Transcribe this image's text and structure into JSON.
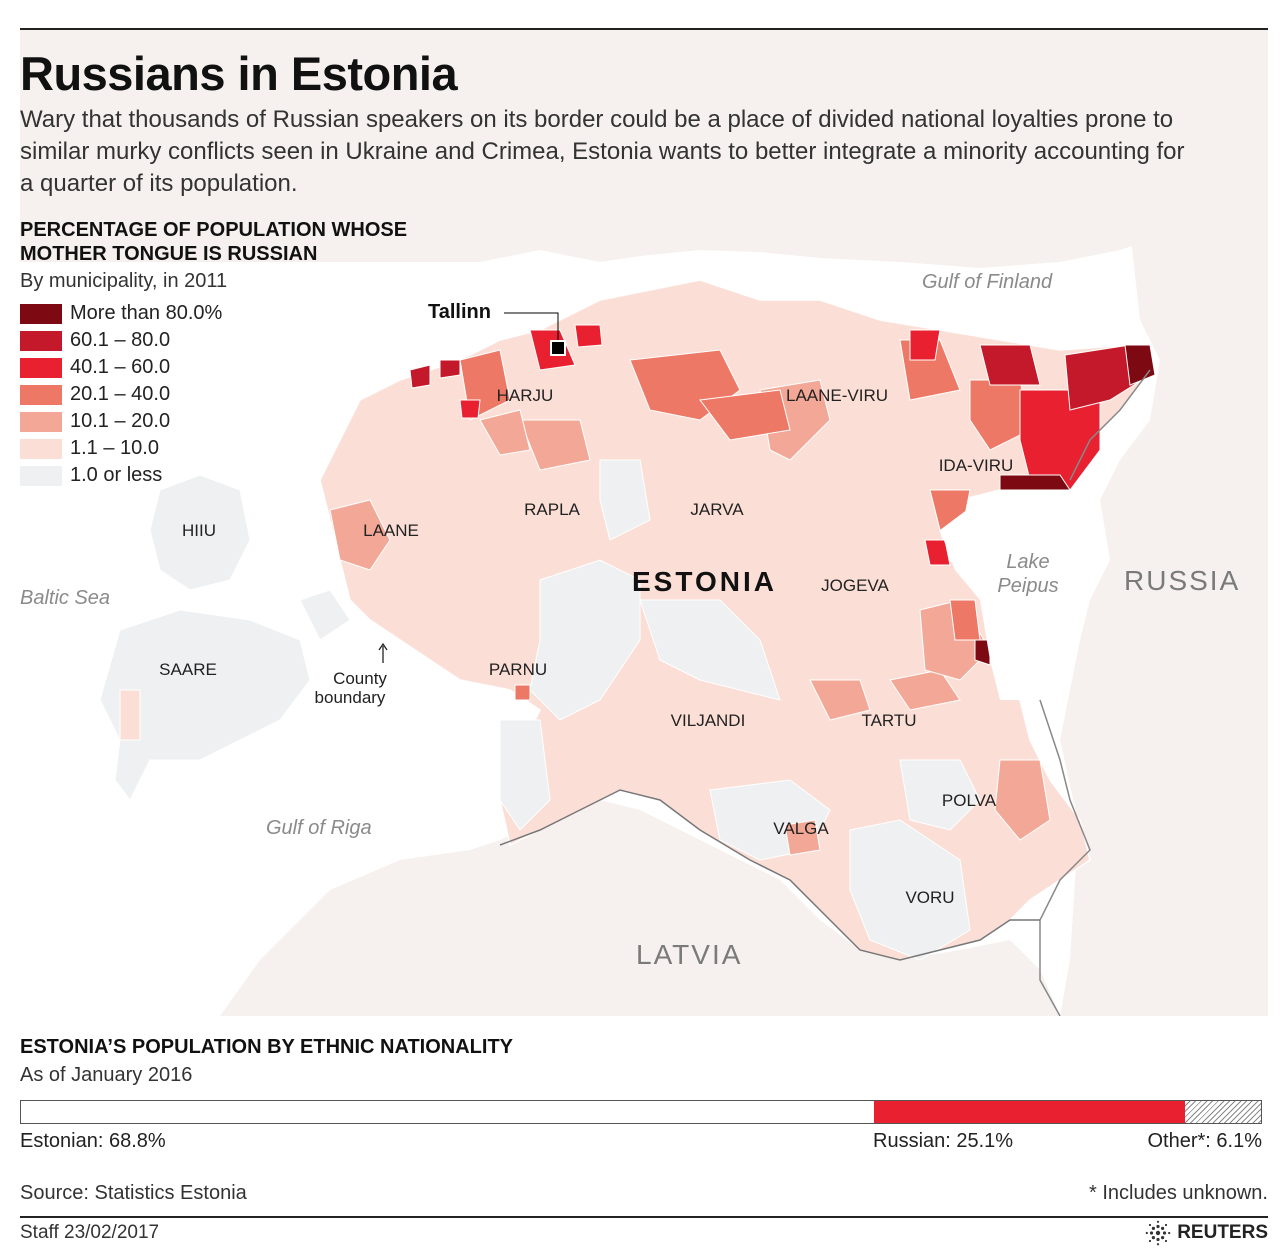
{
  "header": {
    "title": "Russians in Estonia",
    "intro": "Wary that thousands of Russian speakers on its border could be a place of divided national loyalties prone to similar murky conflicts seen in Ukraine and Crimea, Estonia wants to better integrate a minority accounting for a quarter of its population."
  },
  "legend": {
    "title": "PERCENTAGE OF POPULATION WHOSE MOTHER TONGUE IS RUSSIAN",
    "subtitle": "By municipality, in 2011",
    "items": [
      {
        "label": "More than 80.0%",
        "color": "#7d0a12"
      },
      {
        "label": "60.1 – 80.0",
        "color": "#c4192a"
      },
      {
        "label": "40.1 – 60.0",
        "color": "#e8202f"
      },
      {
        "label": "20.1 – 40.0",
        "color": "#ed7866"
      },
      {
        "label": "10.1 – 20.0",
        "color": "#f3a897"
      },
      {
        "label": "1.1 – 10.0",
        "color": "#fbdfd6"
      },
      {
        "label": "1.0 or less",
        "color": "#eef0f1"
      }
    ]
  },
  "map": {
    "country": "ESTONIA",
    "capital": "Tallinn",
    "counties": [
      "HARJU",
      "LAANE-VIRU",
      "IDA-VIRU",
      "RAPLA",
      "JARVA",
      "HIIU",
      "LAANE",
      "JOGEVA",
      "SAARE",
      "PARNU",
      "VILJANDI",
      "TARTU",
      "POLVA",
      "VALGA",
      "VORU"
    ],
    "water": {
      "gulf_finland": "Gulf of Finland",
      "baltic": "Baltic Sea",
      "gulf_riga": "Gulf of Riga",
      "lake_line1": "Lake",
      "lake_line2": "Peipus"
    },
    "neighbors": {
      "russia": "RUSSIA",
      "latvia": "LATVIA"
    },
    "annotation": {
      "line1": "County",
      "line2": "boundary"
    }
  },
  "population_bar": {
    "title": "ESTONIA’S POPULATION BY ETHNIC NATIONALITY",
    "subtitle": "As of January 2016",
    "segments": [
      {
        "name": "Estonian",
        "label": "Estonian: 68.8%",
        "value": 68.8
      },
      {
        "name": "Russian",
        "label": "Russian: 25.1%",
        "value": 25.1
      },
      {
        "name": "Other",
        "label": "Other*: 6.1%",
        "value": 6.1
      }
    ]
  },
  "footer": {
    "source": "Source: Statistics Estonia",
    "footnote": "* Includes unknown.",
    "staff": "Staff  23/02/2017",
    "brand": "REUTERS"
  }
}
